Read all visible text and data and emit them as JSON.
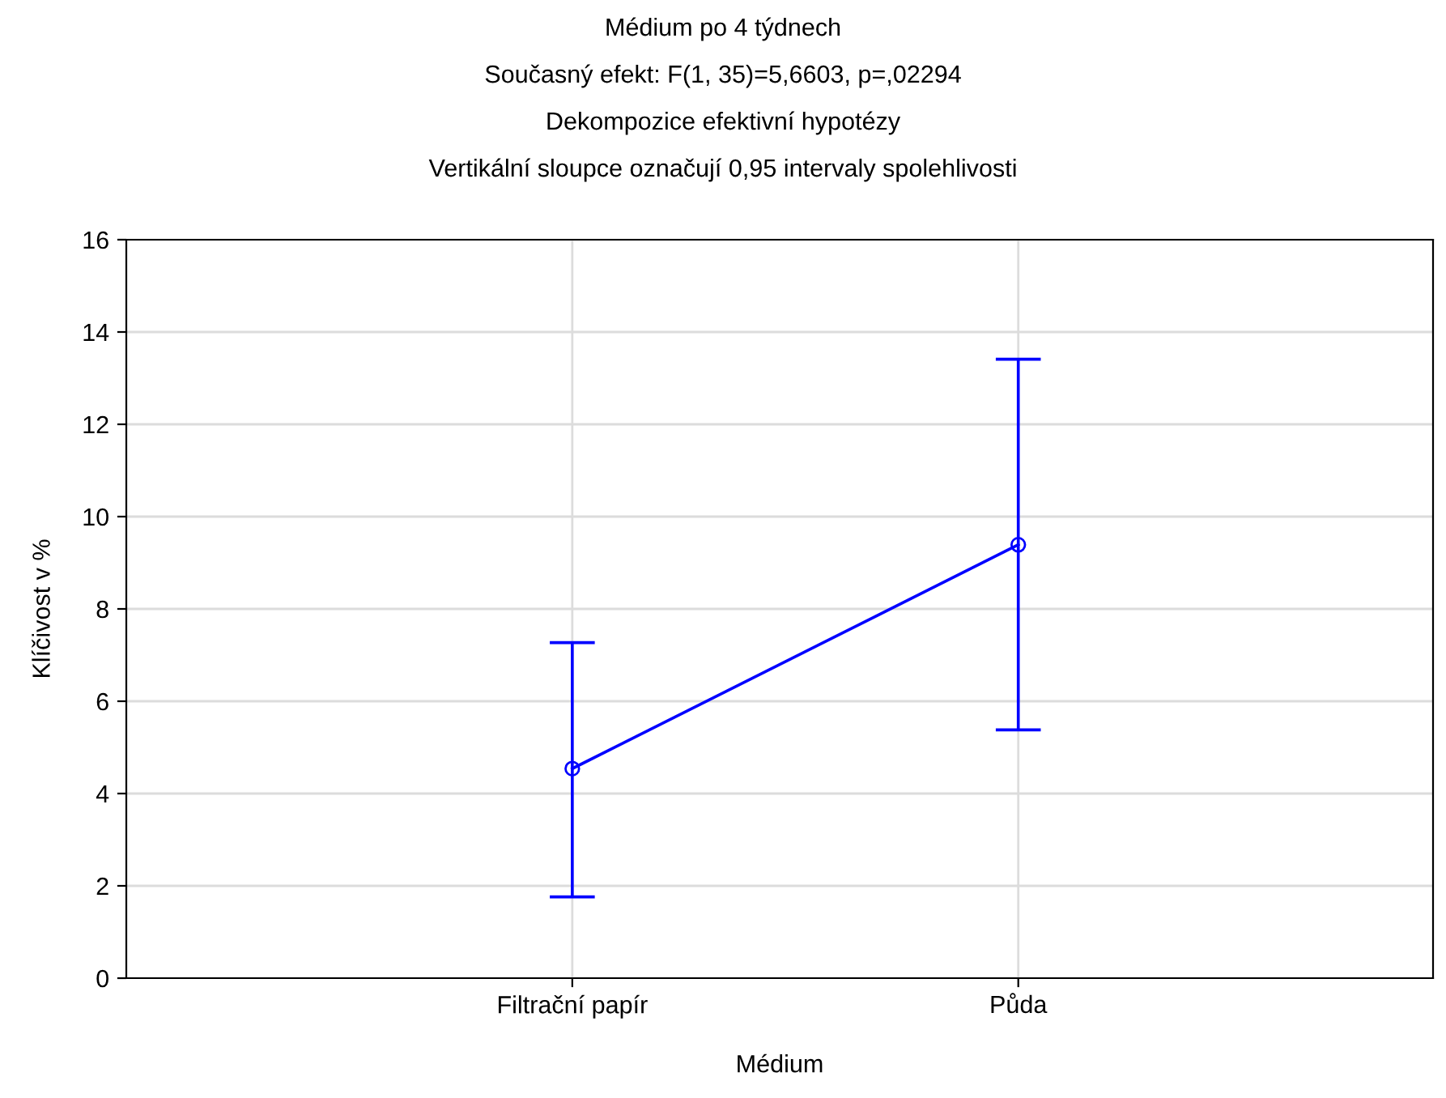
{
  "chart_data": {
    "type": "line",
    "title": "Médium po 4 týdnech",
    "subtitle": "Současný efekt: F(1, 35)=5,6603, p=,02294\nDekompozice efektivní hypotézy\nVertikální sloupce označují 0,95 intervaly spolehlivosti",
    "xlabel": "Médium",
    "ylabel": "Klíčivost v %",
    "categories": [
      "Filtrační papír",
      "Půda"
    ],
    "color": "#0000ff",
    "values": [
      4.54,
      9.39
    ],
    "errors": [
      [
        1.76,
        7.27
      ],
      [
        5.38,
        13.41
      ]
    ],
    "ylim": [
      0,
      16
    ],
    "yticks": [
      0,
      2,
      4,
      6,
      8,
      10,
      12,
      14,
      16
    ],
    "grid": true,
    "marker": "circle",
    "line_style": "solid",
    "legend": false
  }
}
